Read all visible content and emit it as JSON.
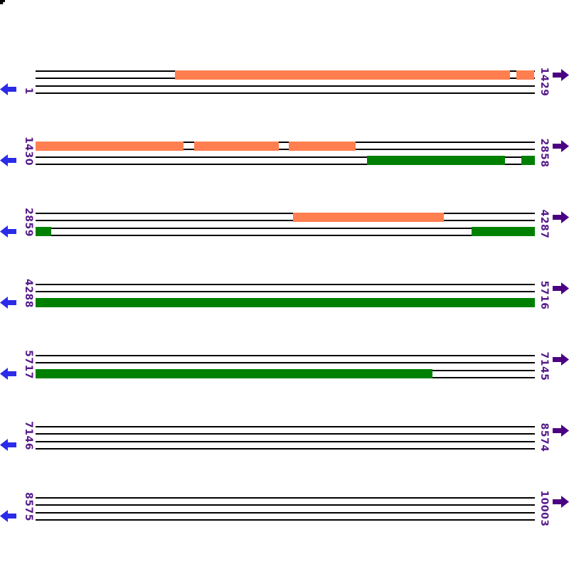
{
  "figure": {
    "background": "#FFFFFF",
    "colors": {
      "forward_orf": "#FF7F50",
      "reverse_orf": "#008000",
      "strand_line": "#000000",
      "position_label": "#551A8B",
      "left_arrow": "#2B2BE8",
      "right_arrow": "#4B0082"
    },
    "icons": {
      "left_arrow": "left-arrow-icon",
      "right_arrow": "right-arrow-icon"
    },
    "corner_artifact": "clipped black glyph fragment at top-left corner"
  },
  "chart_data": {
    "type": "bar",
    "subtype": "orf-span-map",
    "orientation": "horizontal",
    "title": "",
    "xlabel": "",
    "ylabel": "",
    "grid": false,
    "legend": "none",
    "bases_per_row": 1429,
    "sequence_start": 1,
    "sequence_end": 10003,
    "series": [
      {
        "name": "forward ORF segments",
        "color": "#FF7F50"
      },
      {
        "name": "reverse ORF segments",
        "color": "#008000"
      }
    ],
    "rows": [
      {
        "start_label": "1",
        "end_label": "1429",
        "forward_segments": [
          {
            "pct_start": 27.92,
            "pct_end": 95.01,
            "est_base_start": 400,
            "est_base_end": 1358
          },
          {
            "pct_start": 96.3,
            "pct_end": 99.9,
            "est_base_start": 1377,
            "est_base_end": 1429
          }
        ],
        "reverse_segments": []
      },
      {
        "start_label": "1430",
        "end_label": "2858",
        "forward_segments": [
          {
            "pct_start": 0,
            "pct_end": 29.63,
            "est_base_start": 1430,
            "est_base_end": 1853
          },
          {
            "pct_start": 31.77,
            "pct_end": 48.72,
            "est_base_start": 1884,
            "est_base_end": 2126
          },
          {
            "pct_start": 50.71,
            "pct_end": 64.1,
            "est_base_start": 2155,
            "est_base_end": 2346
          }
        ],
        "reverse_segments": [
          {
            "pct_start": 66.38,
            "pct_end": 94.02,
            "est_base_start": 2379,
            "est_base_end": 2773
          },
          {
            "pct_start": 97.29,
            "pct_end": 100,
            "est_base_start": 2820,
            "est_base_end": 2858
          }
        ]
      },
      {
        "start_label": "2859",
        "end_label": "4287",
        "forward_segments": [
          {
            "pct_start": 51.57,
            "pct_end": 81.77,
            "est_base_start": 3596,
            "est_base_end": 4027
          }
        ],
        "reverse_segments": [
          {
            "pct_start": 0,
            "pct_end": 3.13,
            "est_base_start": 2859,
            "est_base_end": 2904
          },
          {
            "pct_start": 87.32,
            "pct_end": 100,
            "est_base_start": 4107,
            "est_base_end": 4287
          }
        ]
      },
      {
        "start_label": "4288",
        "end_label": "5716",
        "forward_segments": [],
        "reverse_segments": [
          {
            "pct_start": 0,
            "pct_end": 100,
            "est_base_start": 4288,
            "est_base_end": 5716
          }
        ]
      },
      {
        "start_label": "5717",
        "end_label": "7145",
        "forward_segments": [],
        "reverse_segments": [
          {
            "pct_start": 0,
            "pct_end": 79.49,
            "est_base_start": 5717,
            "est_base_end": 6853
          }
        ]
      },
      {
        "start_label": "7146",
        "end_label": "8574",
        "forward_segments": [],
        "reverse_segments": []
      },
      {
        "start_label": "8575",
        "end_label": "10003",
        "forward_segments": [],
        "reverse_segments": []
      }
    ]
  }
}
